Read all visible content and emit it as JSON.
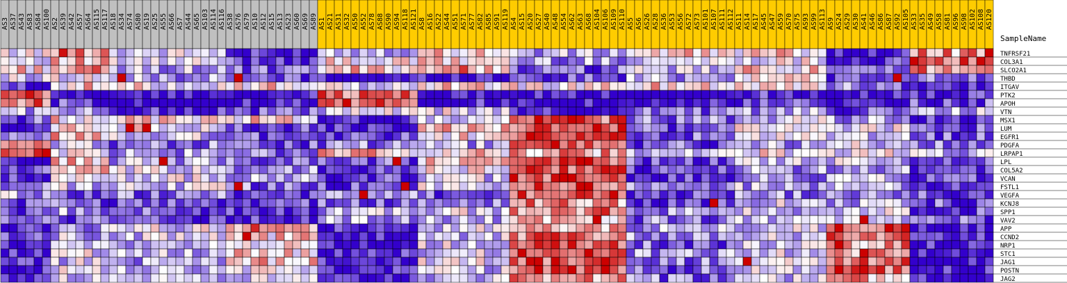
{
  "chart_data": {
    "type": "heatmap",
    "header_label": "SampleName",
    "columns": [
      {
        "name": "AS3",
        "group": 0
      },
      {
        "name": "AS37",
        "group": 0
      },
      {
        "name": "AS43",
        "group": 0
      },
      {
        "name": "AS83",
        "group": 0
      },
      {
        "name": "AS84",
        "group": 0
      },
      {
        "name": "AS100",
        "group": 0
      },
      {
        "name": "AS2",
        "group": 0
      },
      {
        "name": "AS39",
        "group": 0
      },
      {
        "name": "AS42",
        "group": 0
      },
      {
        "name": "AS57",
        "group": 0
      },
      {
        "name": "AS64",
        "group": 0
      },
      {
        "name": "AS115",
        "group": 0
      },
      {
        "name": "AS117",
        "group": 0
      },
      {
        "name": "AS18",
        "group": 0
      },
      {
        "name": "AS34",
        "group": 0
      },
      {
        "name": "AS74",
        "group": 0
      },
      {
        "name": "AS80",
        "group": 0
      },
      {
        "name": "AS19",
        "group": 0
      },
      {
        "name": "AS25",
        "group": 0
      },
      {
        "name": "AS55",
        "group": 0
      },
      {
        "name": "AS66",
        "group": 0
      },
      {
        "name": "AS7",
        "group": 0
      },
      {
        "name": "AS44",
        "group": 0
      },
      {
        "name": "AS65",
        "group": 0
      },
      {
        "name": "AS103",
        "group": 0
      },
      {
        "name": "AS114",
        "group": 0
      },
      {
        "name": "AS116",
        "group": 0
      },
      {
        "name": "AS38",
        "group": 0
      },
      {
        "name": "AS76",
        "group": 0
      },
      {
        "name": "AS79",
        "group": 0
      },
      {
        "name": "AS10",
        "group": 0
      },
      {
        "name": "AS12",
        "group": 0
      },
      {
        "name": "AS15",
        "group": 0
      },
      {
        "name": "AS13",
        "group": 0
      },
      {
        "name": "AS23",
        "group": 0
      },
      {
        "name": "AS60",
        "group": 0
      },
      {
        "name": "AS69",
        "group": 0
      },
      {
        "name": "AS89",
        "group": 0
      },
      {
        "name": "AS1",
        "group": 1
      },
      {
        "name": "AS21",
        "group": 1
      },
      {
        "name": "AS31",
        "group": 1
      },
      {
        "name": "AS32",
        "group": 1
      },
      {
        "name": "AS50",
        "group": 1
      },
      {
        "name": "AS52",
        "group": 1
      },
      {
        "name": "AS78",
        "group": 1
      },
      {
        "name": "AS88",
        "group": 1
      },
      {
        "name": "AS90",
        "group": 1
      },
      {
        "name": "AS94",
        "group": 1
      },
      {
        "name": "AS118",
        "group": 1
      },
      {
        "name": "AS121",
        "group": 1
      },
      {
        "name": "AS8",
        "group": 1
      },
      {
        "name": "AS16",
        "group": 1
      },
      {
        "name": "AS22",
        "group": 1
      },
      {
        "name": "AS44",
        "group": 1
      },
      {
        "name": "AS51",
        "group": 1
      },
      {
        "name": "AS71",
        "group": 1
      },
      {
        "name": "AS77",
        "group": 1
      },
      {
        "name": "AS82",
        "group": 1
      },
      {
        "name": "AS85",
        "group": 1
      },
      {
        "name": "AS91",
        "group": 1
      },
      {
        "name": "AS119",
        "group": 1
      },
      {
        "name": "AS4",
        "group": 1
      },
      {
        "name": "AS15",
        "group": 1
      },
      {
        "name": "AS20",
        "group": 1
      },
      {
        "name": "AS27",
        "group": 1
      },
      {
        "name": "AS40",
        "group": 1
      },
      {
        "name": "AS48",
        "group": 1
      },
      {
        "name": "AS54",
        "group": 1
      },
      {
        "name": "AS62",
        "group": 1
      },
      {
        "name": "AS63",
        "group": 1
      },
      {
        "name": "AS68",
        "group": 1
      },
      {
        "name": "AS104",
        "group": 1
      },
      {
        "name": "AS106",
        "group": 1
      },
      {
        "name": "AS109",
        "group": 1
      },
      {
        "name": "AS110",
        "group": 1
      },
      {
        "name": "AS5",
        "group": 1
      },
      {
        "name": "AS6",
        "group": 1
      },
      {
        "name": "AS26",
        "group": 1
      },
      {
        "name": "AS28",
        "group": 1
      },
      {
        "name": "AS36",
        "group": 1
      },
      {
        "name": "AS53",
        "group": 1
      },
      {
        "name": "AS56",
        "group": 1
      },
      {
        "name": "AS72",
        "group": 1
      },
      {
        "name": "AS73",
        "group": 1
      },
      {
        "name": "AS101",
        "group": 1
      },
      {
        "name": "AS107",
        "group": 1
      },
      {
        "name": "AS111",
        "group": 1
      },
      {
        "name": "AS112",
        "group": 1
      },
      {
        "name": "AS11",
        "group": 1
      },
      {
        "name": "AS14",
        "group": 1
      },
      {
        "name": "AS17",
        "group": 1
      },
      {
        "name": "AS45",
        "group": 1
      },
      {
        "name": "AS47",
        "group": 1
      },
      {
        "name": "AS59",
        "group": 1
      },
      {
        "name": "AS70",
        "group": 1
      },
      {
        "name": "AS75",
        "group": 1
      },
      {
        "name": "AS93",
        "group": 1
      },
      {
        "name": "AS99",
        "group": 1
      },
      {
        "name": "AS113",
        "group": 1
      },
      {
        "name": "AS9",
        "group": 1
      },
      {
        "name": "AS24",
        "group": 1
      },
      {
        "name": "AS29",
        "group": 1
      },
      {
        "name": "AS30",
        "group": 1
      },
      {
        "name": "AS41",
        "group": 1
      },
      {
        "name": "AS46",
        "group": 1
      },
      {
        "name": "AS86",
        "group": 1
      },
      {
        "name": "AS87",
        "group": 1
      },
      {
        "name": "AS92",
        "group": 1
      },
      {
        "name": "AS105",
        "group": 1
      },
      {
        "name": "AS33",
        "group": 1
      },
      {
        "name": "AS35",
        "group": 1
      },
      {
        "name": "AS49",
        "group": 1
      },
      {
        "name": "AS58",
        "group": 1
      },
      {
        "name": "AS81",
        "group": 1
      },
      {
        "name": "AS96",
        "group": 1
      },
      {
        "name": "AS98",
        "group": 1
      },
      {
        "name": "AS102",
        "group": 1
      },
      {
        "name": "AS108",
        "group": 1
      },
      {
        "name": "AS120",
        "group": 1
      }
    ],
    "rows": [
      "TNFRSF21",
      "COL3A1",
      "SLCO2A1",
      "THBD",
      "ITGAV",
      "PTK2",
      "APOH",
      "VTN",
      "MSX1",
      "LUM",
      "EGFR1",
      "PDGFA",
      "LRPAP1",
      "LPL",
      "COL5A2",
      "VCAN",
      "FSTL1",
      "VEGFA",
      "KCNJ8",
      "SPP1",
      "VAV2",
      "APP",
      "CCND2",
      "NRP1",
      "STC1",
      "JAG1",
      "POSTN",
      "JAG2"
    ],
    "column_clusters": [
      {
        "start": 0,
        "size": 6
      },
      {
        "start": 6,
        "size": 7
      },
      {
        "start": 13,
        "size": 14
      },
      {
        "start": 27,
        "size": 11
      },
      {
        "start": 38,
        "size": 12
      },
      {
        "start": 50,
        "size": 11
      },
      {
        "start": 61,
        "size": 14
      },
      {
        "start": 75,
        "size": 13
      },
      {
        "start": 88,
        "size": 11
      },
      {
        "start": 99,
        "size": 10
      },
      {
        "start": 109,
        "size": 10
      }
    ],
    "cluster_profiles": [
      [
        0.0,
        0.0,
        0.3,
        -0.3,
        -1.3,
        0.8,
        0.8,
        -0.4,
        -1.0,
        -1.5,
        -1.0,
        0.4,
        1.3,
        -1.5,
        -1.0,
        -1.3,
        -0.8,
        -0.5,
        -1.1,
        -1.2,
        -1.0,
        -1.4,
        -0.8,
        -1.5,
        -1.3,
        -1.4,
        -1.2,
        -1.5
      ],
      [
        0.8,
        0.3,
        0.5,
        0.0,
        0.2,
        -1.5,
        -1.0,
        -0.8,
        0.2,
        0.3,
        0.4,
        -0.3,
        0.0,
        0.3,
        0.2,
        0.0,
        -0.4,
        -1.0,
        -1.0,
        -0.6,
        -0.9,
        -0.5,
        -0.4,
        -0.3,
        -0.2,
        -0.3,
        -0.2,
        -0.3
      ],
      [
        -0.2,
        -0.3,
        -0.5,
        -0.6,
        0.0,
        -1.5,
        -1.5,
        -1.2,
        0.2,
        0.0,
        -0.4,
        -0.8,
        -0.6,
        -0.5,
        -0.3,
        -0.2,
        -0.3,
        -0.8,
        -0.9,
        -1.0,
        -1.2,
        -0.2,
        -0.4,
        -0.5,
        -0.4,
        -0.5,
        -0.5,
        -0.4
      ],
      [
        -1.4,
        -1.0,
        -1.0,
        -1.0,
        0.2,
        -1.5,
        -1.5,
        -1.0,
        0.2,
        -1.2,
        -1.0,
        -1.0,
        -0.8,
        -0.8,
        -0.6,
        -0.6,
        -0.8,
        -1.3,
        -1.2,
        -1.3,
        -1.3,
        0.8,
        0.2,
        0.0,
        0.2,
        0.3,
        0.0,
        -0.4
      ],
      [
        -0.3,
        0.0,
        0.3,
        -1.5,
        -0.3,
        0.9,
        0.9,
        -0.3,
        -1.4,
        -1.4,
        -1.2,
        -0.8,
        0.3,
        -1.0,
        -1.3,
        -1.2,
        -1.2,
        -0.8,
        -1.0,
        -0.4,
        -0.5,
        -1.4,
        -1.3,
        -1.4,
        -1.3,
        -1.4,
        -1.3,
        -1.5
      ],
      [
        0.3,
        0.2,
        0.6,
        -1.4,
        0.3,
        -1.5,
        -1.4,
        -0.2,
        -0.3,
        0.3,
        0.2,
        -0.5,
        0.2,
        0.3,
        0.0,
        -0.3,
        -0.2,
        -1.0,
        -0.8,
        -0.2,
        -0.6,
        -0.3,
        -0.4,
        -0.3,
        -0.3,
        -0.2,
        -0.4,
        -0.3
      ],
      [
        -0.5,
        -0.6,
        -1.0,
        -1.0,
        0.0,
        -1.5,
        -1.4,
        -1.4,
        1.0,
        1.0,
        1.0,
        0.8,
        0.5,
        1.0,
        1.0,
        1.0,
        1.0,
        0.9,
        0.6,
        0.8,
        0.5,
        0.5,
        0.8,
        1.0,
        1.0,
        1.0,
        1.0,
        0.7
      ],
      [
        0.2,
        -0.2,
        -0.4,
        -0.5,
        0.3,
        -1.5,
        -1.5,
        -0.8,
        -0.8,
        -1.0,
        -1.0,
        -1.0,
        -0.5,
        -1.0,
        -1.1,
        -1.2,
        -0.8,
        -1.1,
        -1.2,
        -0.6,
        -0.8,
        -0.5,
        -0.7,
        -0.9,
        -0.7,
        -0.8,
        -0.9,
        -0.8
      ],
      [
        0.2,
        0.0,
        0.2,
        0.2,
        0.3,
        -1.2,
        -1.2,
        -0.6,
        -0.3,
        0.0,
        -0.3,
        -0.6,
        0.0,
        -0.3,
        -0.6,
        -0.6,
        -0.5,
        -0.7,
        -0.3,
        -0.4,
        -0.5,
        -0.3,
        -0.2,
        -0.3,
        -0.2,
        -0.3,
        -0.3,
        -0.3
      ],
      [
        -1.5,
        -1.2,
        -1.1,
        -1.2,
        -0.8,
        -1.5,
        -1.4,
        -1.0,
        -0.6,
        -0.2,
        -0.4,
        -0.3,
        0.0,
        -0.3,
        -0.5,
        -0.5,
        -0.6,
        -0.8,
        -0.4,
        -0.3,
        -0.5,
        1.0,
        0.8,
        0.6,
        0.6,
        0.8,
        0.9,
        0.5
      ],
      [
        0.6,
        0.9,
        0.8,
        -0.8,
        -1.3,
        -1.3,
        -1.0,
        -0.5,
        -1.2,
        -1.0,
        -1.0,
        -0.8,
        -0.5,
        -1.0,
        -1.1,
        -1.2,
        -1.0,
        -1.0,
        -1.0,
        -1.1,
        -1.0,
        -1.4,
        -1.2,
        -1.4,
        -1.3,
        -1.4,
        -1.3,
        -1.5
      ]
    ],
    "highlight_cells": [
      [
        3,
        14
      ],
      [
        9,
        15
      ],
      [
        13,
        19
      ],
      [
        9,
        17
      ],
      [
        16,
        28
      ],
      [
        22,
        29
      ],
      [
        3,
        28
      ],
      [
        13,
        47
      ],
      [
        16,
        48
      ],
      [
        29,
        43
      ],
      [
        31,
        34
      ],
      [
        11,
        66
      ],
      [
        20,
        71
      ],
      [
        32,
        75
      ],
      [
        17,
        43
      ],
      [
        25,
        89
      ],
      [
        18,
        85
      ],
      [
        20,
        103
      ],
      [
        3,
        107
      ],
      [
        0,
        118
      ],
      [
        21,
        100
      ],
      [
        26,
        100
      ],
      [
        23,
        100
      ],
      [
        24,
        103
      ]
    ],
    "color_scale": {
      "low": "#3300cc",
      "mid": "#ffffff",
      "high": "#cc0000",
      "min": -1.5,
      "max": 1.5
    },
    "group_header_colors": [
      "#c0c0c0",
      "#ffcc00"
    ],
    "legend": "none",
    "grid": true
  }
}
